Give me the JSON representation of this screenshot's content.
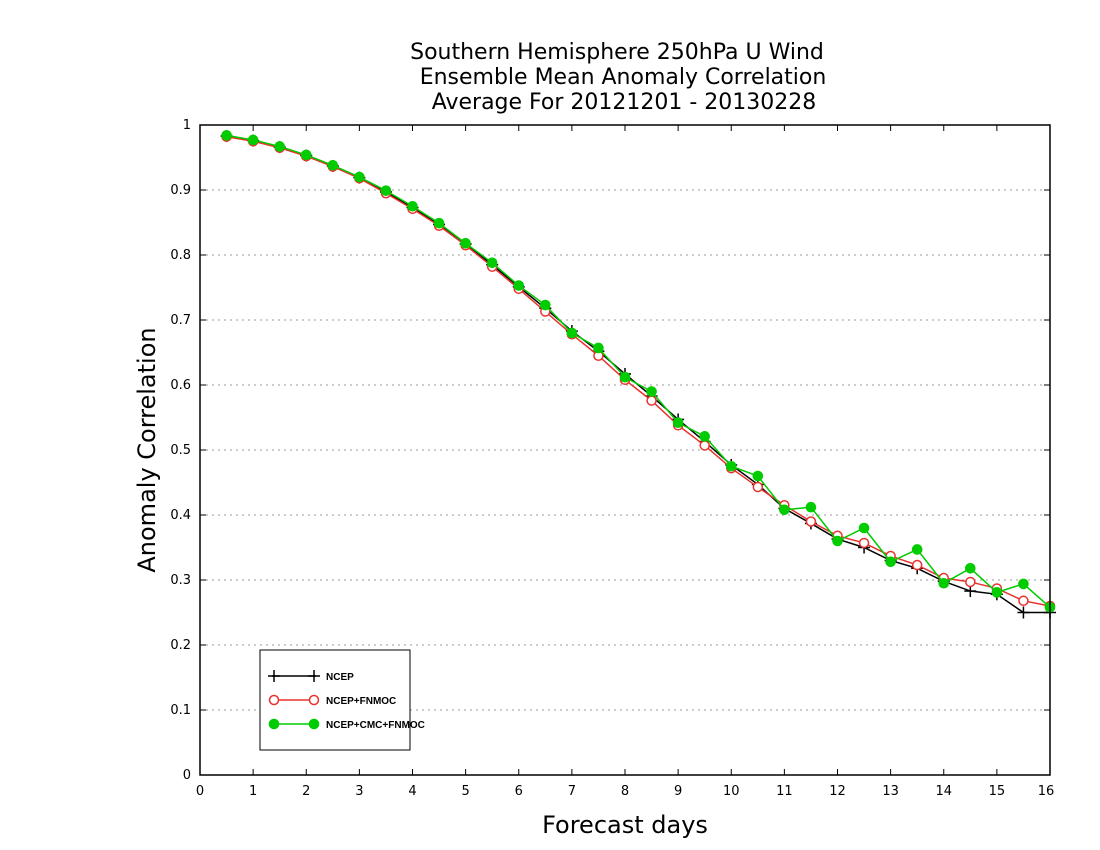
{
  "chart_data": {
    "type": "line",
    "title_lines": [
      "Southern Hemisphere 250hPa U Wind",
      "Ensemble Mean Anomaly Correlation",
      "Average For 20121201 - 20130228"
    ],
    "xlabel": "Forecast days",
    "ylabel": "Anomaly Correlation",
    "xlim": [
      0,
      16
    ],
    "ylim": [
      0,
      1
    ],
    "x_ticks": [
      "0",
      "1",
      "2",
      "3",
      "4",
      "5",
      "6",
      "7",
      "8",
      "9",
      "10",
      "11",
      "12",
      "13",
      "14",
      "15",
      "16"
    ],
    "y_ticks": [
      "0",
      "0.1",
      "0.2",
      "0.3",
      "0.4",
      "0.5",
      "0.6",
      "0.7",
      "0.8",
      "0.9",
      "1"
    ],
    "grid": "horizontal dotted",
    "legend_position": "bottom-left",
    "x": [
      0.5,
      1,
      1.5,
      2,
      2.5,
      3,
      3.5,
      4,
      4.5,
      5,
      5.5,
      6,
      6.5,
      7,
      7.5,
      8,
      8.5,
      9,
      9.5,
      10,
      10.5,
      11,
      11.5,
      12,
      12.5,
      13,
      13.5,
      14,
      14.5,
      15,
      15.5,
      16
    ],
    "series": [
      {
        "name": "NCEP",
        "color": "#000000",
        "marker": "plus",
        "values": [
          0.983,
          0.976,
          0.966,
          0.953,
          0.937,
          0.919,
          0.897,
          0.873,
          0.847,
          0.817,
          0.785,
          0.751,
          0.718,
          0.683,
          0.652,
          0.617,
          0.583,
          0.547,
          0.513,
          0.477,
          0.447,
          0.41,
          0.387,
          0.363,
          0.35,
          0.33,
          0.318,
          0.298,
          0.283,
          0.278,
          0.25,
          0.25
        ]
      },
      {
        "name": "NCEP+FNMOC",
        "color": "#e8322d",
        "marker": "open-circle",
        "values": [
          0.982,
          0.975,
          0.965,
          0.952,
          0.936,
          0.918,
          0.895,
          0.871,
          0.845,
          0.815,
          0.782,
          0.748,
          0.713,
          0.678,
          0.645,
          0.608,
          0.576,
          0.538,
          0.507,
          0.472,
          0.443,
          0.415,
          0.39,
          0.368,
          0.357,
          0.337,
          0.323,
          0.303,
          0.297,
          0.287,
          0.268,
          0.26
        ]
      },
      {
        "name": "NCEP+CMC+FNMOC",
        "color": "#00cc00",
        "marker": "filled-circle",
        "values": [
          0.984,
          0.977,
          0.967,
          0.954,
          0.938,
          0.92,
          0.899,
          0.875,
          0.849,
          0.818,
          0.788,
          0.753,
          0.723,
          0.68,
          0.657,
          0.612,
          0.59,
          0.542,
          0.521,
          0.475,
          0.46,
          0.408,
          0.412,
          0.36,
          0.38,
          0.328,
          0.347,
          0.295,
          0.318,
          0.281,
          0.294,
          0.258
        ]
      }
    ]
  }
}
